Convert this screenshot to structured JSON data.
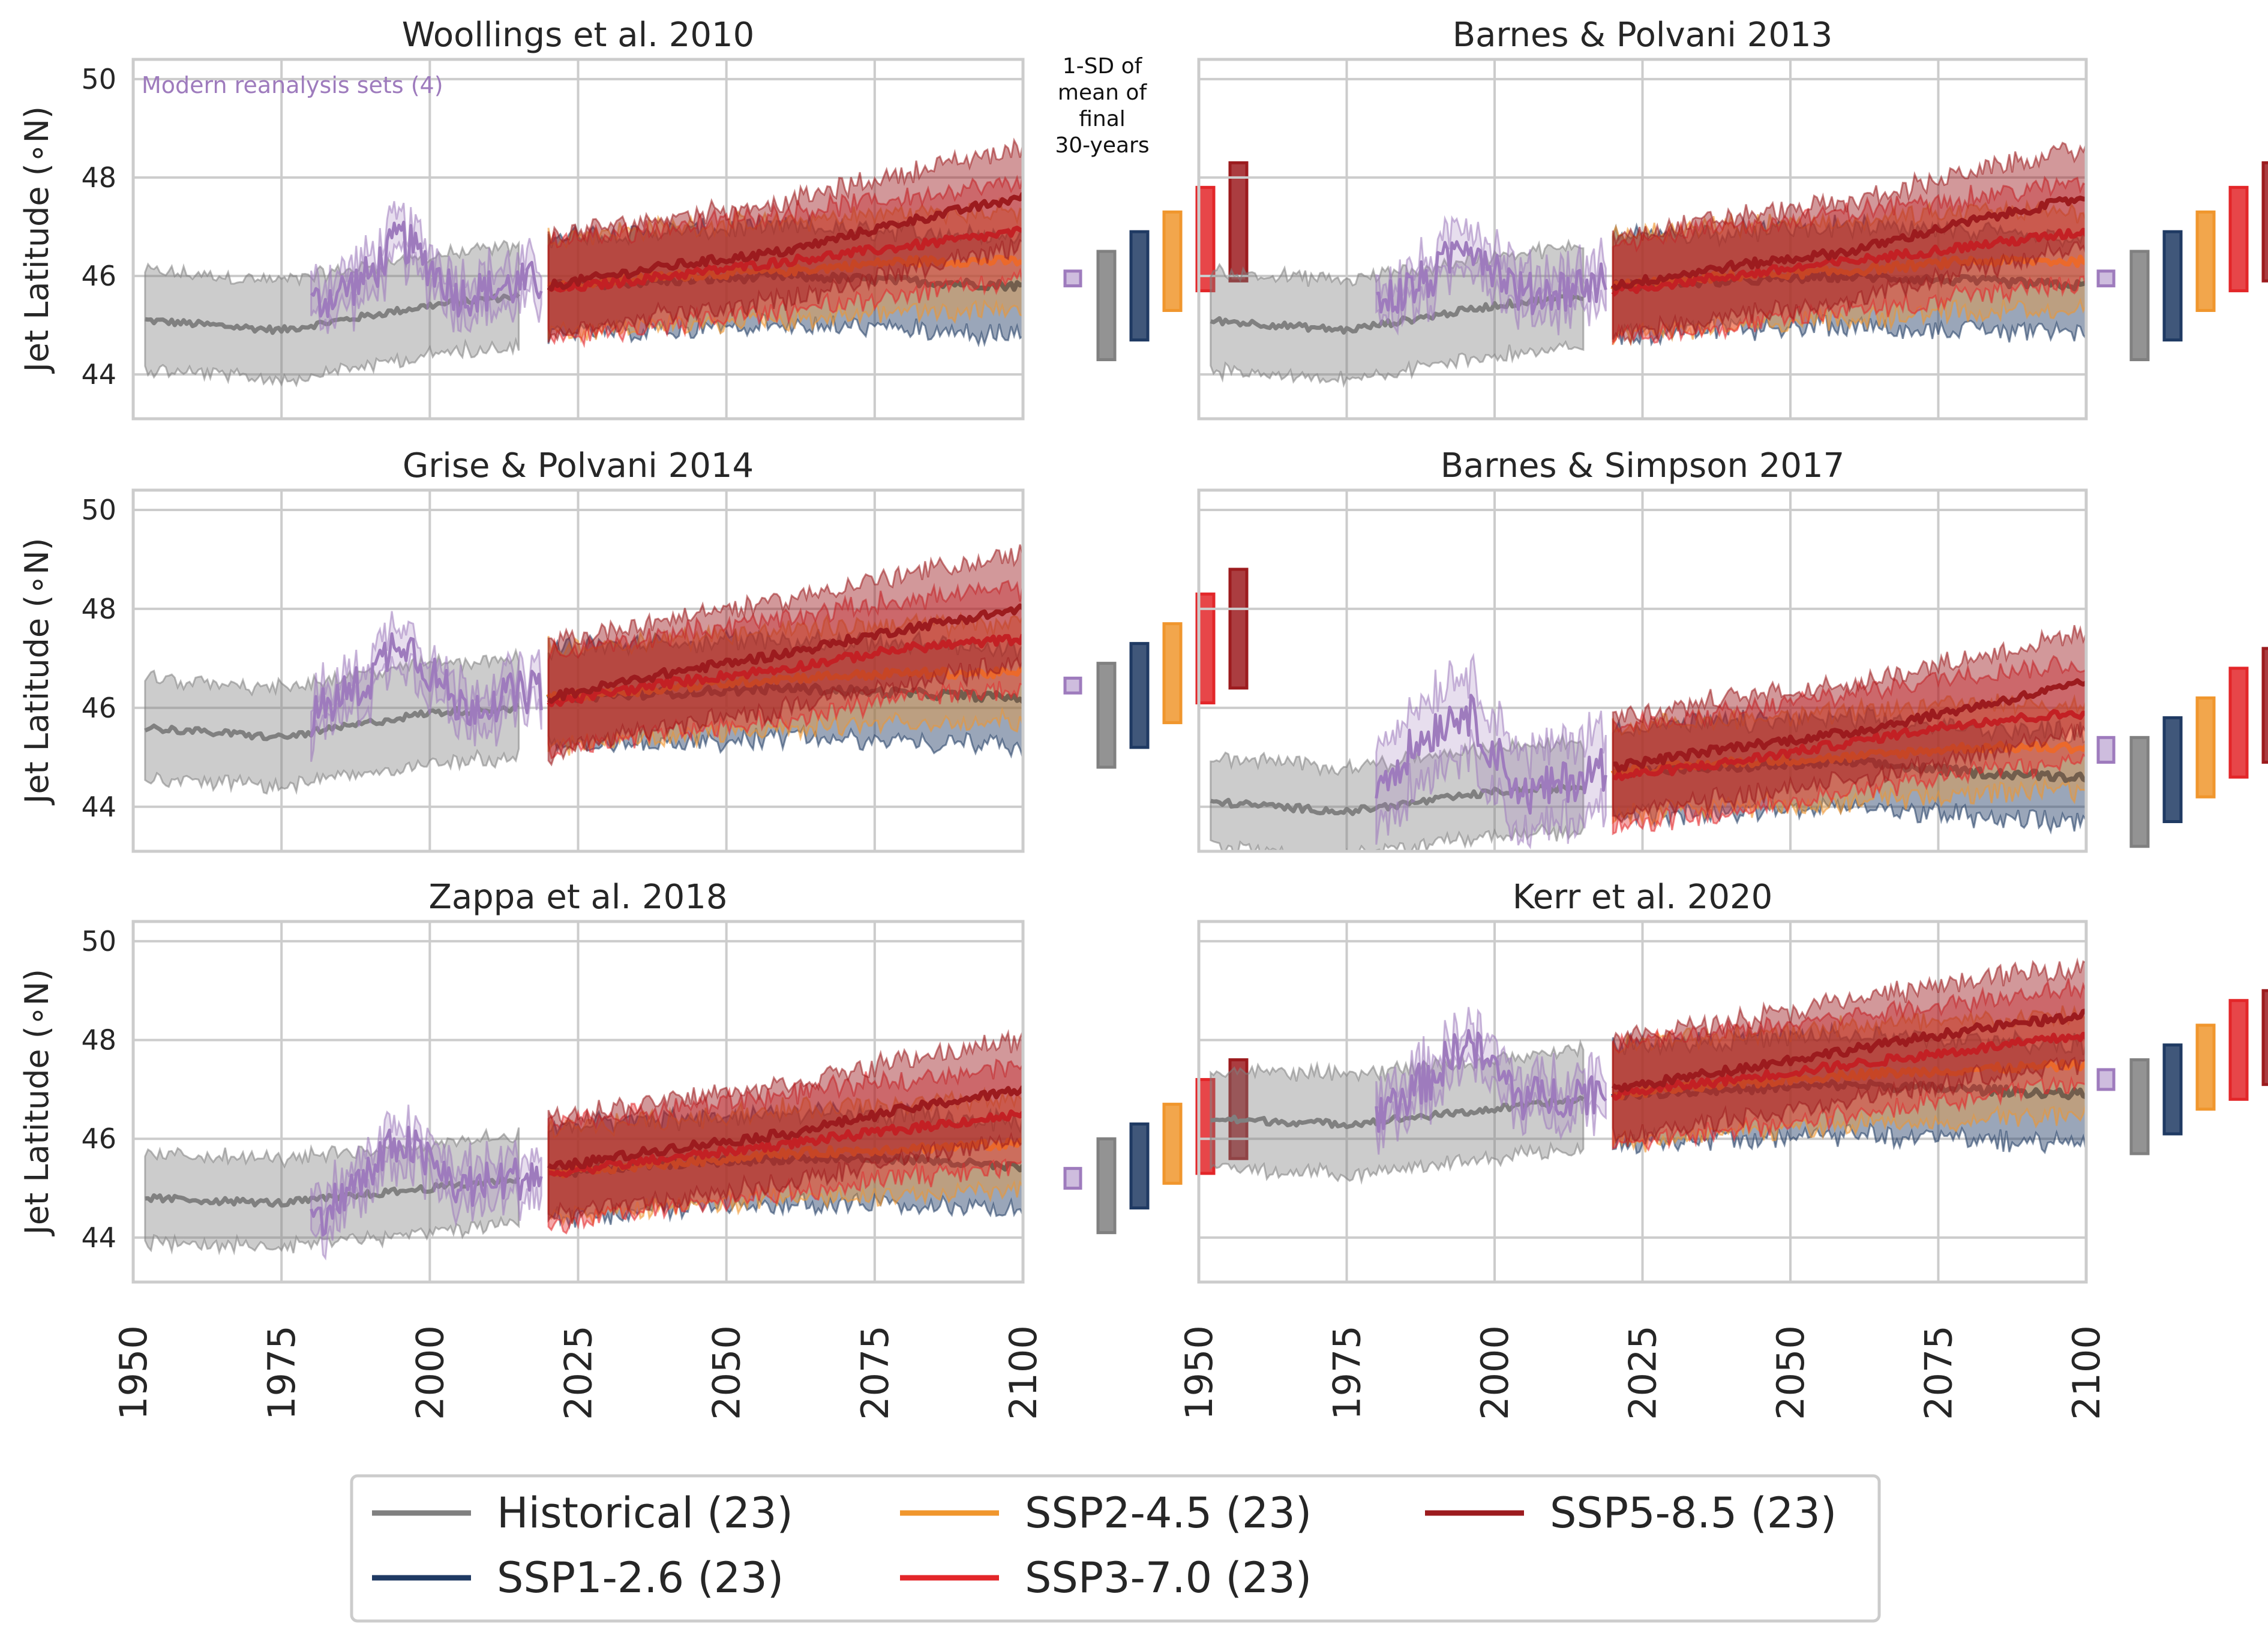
{
  "ylabel": "Jet Latitude (∘N)",
  "annotation_reanalysis": "Modern reanalysis sets (4)",
  "annotation_sd": [
    "1-SD of",
    "mean of",
    "final",
    "30-years"
  ],
  "colors": {
    "historical": "#808080",
    "ssp126": "#1f3a63",
    "ssp245": "#f0962d",
    "ssp370": "#e32629",
    "ssp585": "#9c1b1e",
    "reanalysis": "#9e7bbd",
    "grid": "#cccccc"
  },
  "legend": [
    {
      "key": "historical",
      "label": "Historical (23)"
    },
    {
      "key": "ssp126",
      "label": "SSP1-2.6 (23)"
    },
    {
      "key": "ssp245",
      "label": "SSP2-4.5 (23)"
    },
    {
      "key": "ssp370",
      "label": "SSP3-7.0 (23)"
    },
    {
      "key": "ssp585",
      "label": "SSP5-8.5 (23)"
    }
  ],
  "chart_data": [
    {
      "type": "line",
      "title": "Woollings et al. 2010",
      "xlim": [
        1950,
        2100
      ],
      "ylim": [
        43.1,
        50.4
      ],
      "xticks": [
        1950,
        1975,
        2000,
        2025,
        2050,
        2075,
        2100
      ],
      "yticks": [
        44,
        46,
        48,
        50
      ],
      "historical": {
        "x": [
          1952,
          1975,
          2000,
          2015
        ],
        "mean": [
          45.1,
          44.9,
          45.4,
          45.6
        ],
        "sd": 1.0
      },
      "reanalysis": {
        "x": [
          1980,
          1990,
          1995,
          2005,
          2019
        ],
        "mean": [
          45.4,
          46.0,
          46.8,
          45.6,
          45.9
        ],
        "sd": 0.4
      },
      "future": {
        "x": [
          2020,
          2040,
          2060,
          2080,
          2100
        ],
        "ssp126": {
          "mean": [
            45.8,
            45.9,
            46.0,
            45.9,
            45.8
          ],
          "sd": 1.0
        },
        "ssp245": {
          "mean": [
            45.8,
            46.0,
            46.1,
            46.3,
            46.3
          ],
          "sd": 1.0
        },
        "ssp370": {
          "mean": [
            45.7,
            46.0,
            46.3,
            46.6,
            46.9
          ],
          "sd": 1.0
        },
        "ssp585": {
          "mean": [
            45.8,
            46.2,
            46.5,
            47.1,
            47.6
          ],
          "sd": 1.0
        }
      },
      "sd_bars": {
        "reanalysis": [
          45.8,
          46.1
        ],
        "historical": [
          44.3,
          46.5
        ],
        "ssp126": [
          44.7,
          46.9
        ],
        "ssp245": [
          45.3,
          47.3
        ],
        "ssp370": [
          45.7,
          47.8
        ],
        "ssp585": [
          45.9,
          48.3
        ]
      }
    },
    {
      "type": "line",
      "title": "Barnes & Polvani 2013",
      "xlim": [
        1950,
        2100
      ],
      "ylim": [
        43.1,
        50.4
      ],
      "xticks": [
        1950,
        1975,
        2000,
        2025,
        2050,
        2075,
        2100
      ],
      "yticks": [
        44,
        46,
        48,
        50
      ],
      "historical": {
        "x": [
          1952,
          1975,
          2000,
          2015
        ],
        "mean": [
          45.1,
          44.9,
          45.4,
          45.6
        ],
        "sd": 1.0
      },
      "reanalysis": {
        "x": [
          1980,
          1990,
          1995,
          2005,
          2019
        ],
        "mean": [
          45.4,
          46.0,
          46.8,
          45.6,
          45.9
        ],
        "sd": 0.4
      },
      "future": {
        "x": [
          2020,
          2040,
          2060,
          2080,
          2100
        ],
        "ssp126": {
          "mean": [
            45.8,
            45.9,
            46.0,
            45.9,
            45.8
          ],
          "sd": 1.0
        },
        "ssp245": {
          "mean": [
            45.8,
            46.0,
            46.1,
            46.3,
            46.3
          ],
          "sd": 1.0
        },
        "ssp370": {
          "mean": [
            45.7,
            46.0,
            46.3,
            46.6,
            46.9
          ],
          "sd": 1.0
        },
        "ssp585": {
          "mean": [
            45.8,
            46.2,
            46.5,
            47.1,
            47.6
          ],
          "sd": 1.0
        }
      },
      "sd_bars": {
        "reanalysis": [
          45.8,
          46.1
        ],
        "historical": [
          44.3,
          46.5
        ],
        "ssp126": [
          44.7,
          46.9
        ],
        "ssp245": [
          45.3,
          47.3
        ],
        "ssp370": [
          45.7,
          47.8
        ],
        "ssp585": [
          45.9,
          48.3
        ]
      }
    },
    {
      "type": "line",
      "title": "Grise & Polvani 2014",
      "xlim": [
        1950,
        2100
      ],
      "ylim": [
        43.1,
        50.4
      ],
      "xticks": [
        1950,
        1975,
        2000,
        2025,
        2050,
        2075,
        2100
      ],
      "yticks": [
        44,
        46,
        48,
        50
      ],
      "historical": {
        "x": [
          1952,
          1975,
          2000,
          2015
        ],
        "mean": [
          45.6,
          45.4,
          45.9,
          46.0
        ],
        "sd": 1.0
      },
      "reanalysis": {
        "x": [
          1980,
          1990,
          1995,
          2005,
          2019
        ],
        "mean": [
          45.8,
          46.6,
          47.5,
          46.0,
          46.4
        ],
        "sd": 0.4
      },
      "future": {
        "x": [
          2020,
          2040,
          2060,
          2080,
          2100
        ],
        "ssp126": {
          "mean": [
            46.2,
            46.3,
            46.4,
            46.3,
            46.2
          ],
          "sd": 1.0
        },
        "ssp245": {
          "mean": [
            46.2,
            46.4,
            46.6,
            46.7,
            46.7
          ],
          "sd": 1.0
        },
        "ssp370": {
          "mean": [
            46.1,
            46.5,
            46.8,
            47.2,
            47.4
          ],
          "sd": 1.0
        },
        "ssp585": {
          "mean": [
            46.2,
            46.7,
            47.1,
            47.6,
            48.0
          ],
          "sd": 1.1
        }
      },
      "sd_bars": {
        "reanalysis": [
          46.3,
          46.6
        ],
        "historical": [
          44.8,
          46.9
        ],
        "ssp126": [
          45.2,
          47.3
        ],
        "ssp245": [
          45.7,
          47.7
        ],
        "ssp370": [
          46.1,
          48.3
        ],
        "ssp585": [
          46.4,
          48.8
        ]
      }
    },
    {
      "type": "line",
      "title": "Barnes & Simpson 2017",
      "xlim": [
        1950,
        2100
      ],
      "ylim": [
        43.1,
        50.4
      ],
      "xticks": [
        1950,
        1975,
        2000,
        2025,
        2050,
        2075,
        2100
      ],
      "yticks": [
        44,
        46,
        48,
        50
      ],
      "historical": {
        "x": [
          1952,
          1975,
          2000,
          2015
        ],
        "mean": [
          44.1,
          43.9,
          44.3,
          44.4
        ],
        "sd": 0.9
      },
      "reanalysis": {
        "x": [
          1980,
          1990,
          1995,
          2005,
          2019
        ],
        "mean": [
          44.5,
          45.6,
          46.0,
          44.2,
          44.8
        ],
        "sd": 0.8
      },
      "future": {
        "x": [
          2020,
          2040,
          2060,
          2080,
          2100
        ],
        "ssp126": {
          "mean": [
            44.7,
            44.8,
            44.9,
            44.7,
            44.6
          ],
          "sd": 0.9
        },
        "ssp245": {
          "mean": [
            44.7,
            44.9,
            45.0,
            45.2,
            45.2
          ],
          "sd": 0.9
        },
        "ssp370": {
          "mean": [
            44.6,
            44.9,
            45.3,
            45.7,
            45.9
          ],
          "sd": 1.0
        },
        "ssp585": {
          "mean": [
            44.8,
            45.2,
            45.5,
            46.0,
            46.5
          ],
          "sd": 1.0
        }
      },
      "sd_bars": {
        "reanalysis": [
          44.9,
          45.4
        ],
        "historical": [
          43.2,
          45.4
        ],
        "ssp126": [
          43.7,
          45.8
        ],
        "ssp245": [
          44.2,
          46.2
        ],
        "ssp370": [
          44.6,
          46.8
        ],
        "ssp585": [
          44.9,
          47.2
        ]
      }
    },
    {
      "type": "line",
      "title": "Zappa et al. 2018",
      "xlim": [
        1950,
        2100
      ],
      "ylim": [
        43.1,
        50.4
      ],
      "xticks": [
        1950,
        1975,
        2000,
        2025,
        2050,
        2075,
        2100
      ],
      "yticks": [
        44,
        46,
        48,
        50
      ],
      "historical": {
        "x": [
          1952,
          1975,
          2000,
          2015
        ],
        "mean": [
          44.8,
          44.7,
          45.0,
          45.2
        ],
        "sd": 0.9
      },
      "reanalysis": {
        "x": [
          1980,
          1990,
          1995,
          2005,
          2019
        ],
        "mean": [
          44.3,
          45.3,
          46.0,
          45.0,
          45.3
        ],
        "sd": 0.4
      },
      "future": {
        "x": [
          2020,
          2040,
          2060,
          2080,
          2100
        ],
        "ssp126": {
          "mean": [
            45.3,
            45.5,
            45.6,
            45.6,
            45.4
          ],
          "sd": 0.9
        },
        "ssp245": {
          "mean": [
            45.3,
            45.5,
            45.7,
            45.8,
            45.9
          ],
          "sd": 0.9
        },
        "ssp370": {
          "mean": [
            45.3,
            45.6,
            45.9,
            46.2,
            46.5
          ],
          "sd": 1.0
        },
        "ssp585": {
          "mean": [
            45.4,
            45.8,
            46.1,
            46.6,
            47.0
          ],
          "sd": 1.0
        }
      },
      "sd_bars": {
        "reanalysis": [
          45.0,
          45.4
        ],
        "historical": [
          44.1,
          46.0
        ],
        "ssp126": [
          44.6,
          46.3
        ],
        "ssp245": [
          45.1,
          46.7
        ],
        "ssp370": [
          45.3,
          47.2
        ],
        "ssp585": [
          45.6,
          47.6
        ]
      }
    },
    {
      "type": "line",
      "title": "Kerr et al. 2020",
      "xlim": [
        1950,
        2100
      ],
      "ylim": [
        43.1,
        50.4
      ],
      "xticks": [
        1950,
        1975,
        2000,
        2025,
        2050,
        2075,
        2100
      ],
      "yticks": [
        44,
        46,
        48,
        50
      ],
      "historical": {
        "x": [
          1952,
          1975,
          2000,
          2015
        ],
        "mean": [
          46.4,
          46.3,
          46.6,
          46.8
        ],
        "sd": 1.0
      },
      "reanalysis": {
        "x": [
          1980,
          1990,
          1995,
          2005,
          2019
        ],
        "mean": [
          46.5,
          47.3,
          48.0,
          46.8,
          47.0
        ],
        "sd": 0.4
      },
      "future": {
        "x": [
          2020,
          2040,
          2060,
          2080,
          2100
        ],
        "ssp126": {
          "mean": [
            46.9,
            47.0,
            47.1,
            47.0,
            46.9
          ],
          "sd": 1.0
        },
        "ssp245": {
          "mean": [
            46.9,
            47.1,
            47.3,
            47.4,
            47.5
          ],
          "sd": 1.0
        },
        "ssp370": {
          "mean": [
            46.9,
            47.2,
            47.5,
            47.8,
            48.1
          ],
          "sd": 1.0
        },
        "ssp585": {
          "mean": [
            47.0,
            47.4,
            47.8,
            48.2,
            48.5
          ],
          "sd": 1.0
        }
      },
      "sd_bars": {
        "reanalysis": [
          47.0,
          47.4
        ],
        "historical": [
          45.7,
          47.6
        ],
        "ssp126": [
          46.1,
          47.9
        ],
        "ssp245": [
          46.6,
          48.3
        ],
        "ssp370": [
          46.8,
          48.8
        ],
        "ssp585": [
          47.1,
          49.0
        ]
      }
    }
  ]
}
